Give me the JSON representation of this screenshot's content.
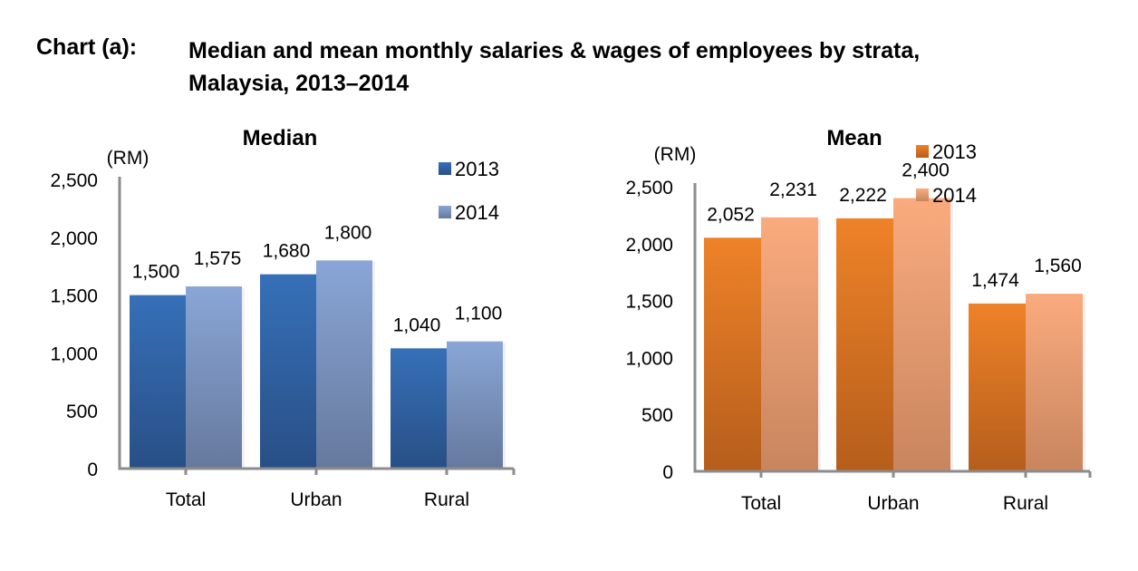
{
  "figure": {
    "prefix": "Chart (a):",
    "title_line1": "Median and mean monthly salaries & wages of employees by strata,",
    "title_line2": "Malaysia, 2013–2014"
  },
  "chart_data": [
    {
      "type": "bar",
      "title": "Median",
      "unit_label": "(RM)",
      "xlabel": "",
      "ylabel": "(RM)",
      "categories": [
        "Total",
        "Urban",
        "Rural"
      ],
      "series": [
        {
          "name": "2013",
          "values": [
            1500,
            1680,
            1040
          ],
          "color_top": "#3670B8",
          "color_bottom": "#284F86"
        },
        {
          "name": "2014",
          "values": [
            1575,
            1800,
            1100
          ],
          "color_top": "#89A6D6",
          "color_bottom": "#66799D"
        }
      ],
      "data_labels": [
        [
          "1,500",
          "1,680",
          "1,040"
        ],
        [
          "1,575",
          "1,800",
          "1,100"
        ]
      ],
      "yticks": [
        0,
        500,
        1000,
        1500,
        2000,
        2500
      ],
      "ytick_labels": [
        "0",
        "500",
        "1,000",
        "1,500",
        "2,000",
        "2,500"
      ],
      "ylim": [
        0,
        2500
      ],
      "grid": false,
      "legend_position": "top-right"
    },
    {
      "type": "bar",
      "title": "Mean",
      "unit_label": "(RM)",
      "xlabel": "",
      "ylabel": "(RM)",
      "categories": [
        "Total",
        "Urban",
        "Rural"
      ],
      "series": [
        {
          "name": "2013",
          "values": [
            2052,
            2222,
            1474
          ],
          "color_top": "#EE8228",
          "color_bottom": "#B55E1C"
        },
        {
          "name": "2014",
          "values": [
            2231,
            2400,
            1560
          ],
          "color_top": "#FAAB7E",
          "color_bottom": "#C8855E"
        }
      ],
      "data_labels": [
        [
          "2,052",
          "2,222",
          "1,474"
        ],
        [
          "2,231",
          "2,400",
          "1,560"
        ]
      ],
      "yticks": [
        0,
        500,
        1000,
        1500,
        2000,
        2500
      ],
      "ytick_labels": [
        "0",
        "500",
        "1,000",
        "1,500",
        "2,000",
        "2,500"
      ],
      "ylim": [
        0,
        2500
      ],
      "grid": false,
      "legend_position": "top-right"
    }
  ]
}
